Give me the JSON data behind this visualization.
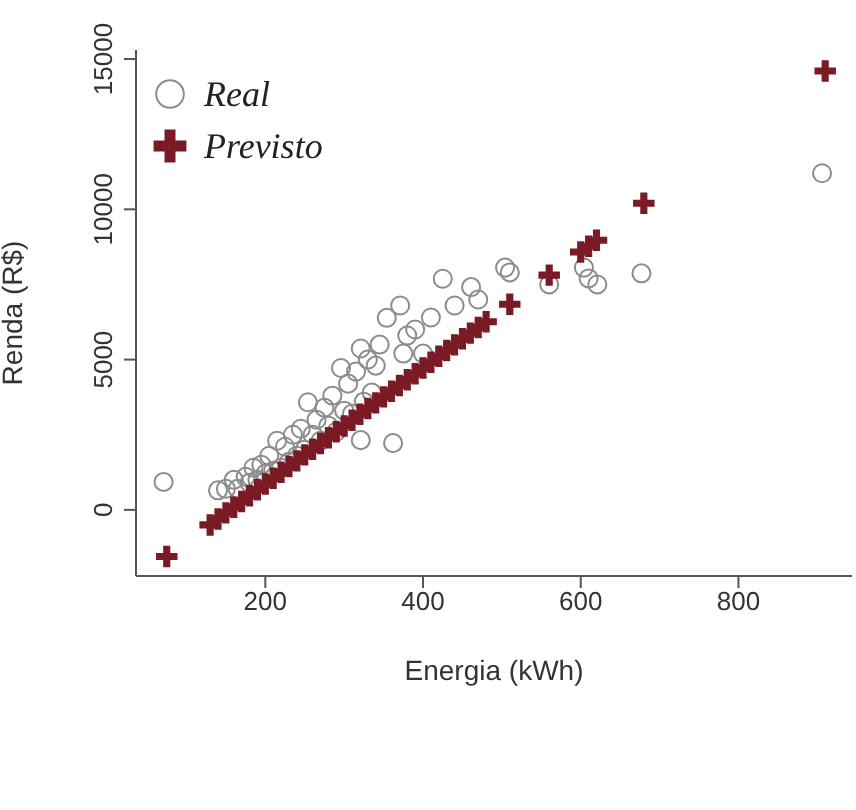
{
  "chart_data": {
    "type": "scatter",
    "xlabel": "Energia (kWh)",
    "ylabel": "Renda (R$)",
    "xlim": [
      36,
      944
    ],
    "xticks": [
      200,
      400,
      600,
      800
    ],
    "ylim": [
      -2200,
      15300
    ],
    "yticks": [
      0,
      5000,
      10000,
      15000
    ],
    "grid": false,
    "legend": "top left",
    "series": [
      {
        "name": "Real",
        "color": "#8c8c8c",
        "marker": "circle",
        "x": [
          71,
          140,
          150,
          160,
          165,
          175,
          180,
          185,
          190,
          195,
          200,
          205,
          210,
          215,
          220,
          225,
          230,
          235,
          240,
          245,
          250,
          254,
          260,
          265,
          270,
          275,
          280,
          285,
          290,
          296,
          300,
          305,
          310,
          315,
          321,
          321,
          325,
          330,
          335,
          340,
          345,
          354,
          362,
          371,
          375,
          380,
          390,
          400,
          410,
          425,
          440,
          461,
          470,
          504,
          510,
          560,
          604,
          610,
          621,
          677,
          906
        ],
        "values": [
          930,
          650,
          700,
          1000,
          700,
          1100,
          900,
          1400,
          1000,
          1500,
          1200,
          1800,
          1300,
          2300,
          1400,
          2100,
          1600,
          2500,
          1800,
          2700,
          2000,
          3580,
          2500,
          3000,
          2300,
          3400,
          2800,
          3800,
          2600,
          4720,
          3300,
          4200,
          3200,
          4600,
          2320,
          5370,
          3600,
          5000,
          3900,
          4800,
          5500,
          6390,
          2220,
          6800,
          5200,
          5800,
          6000,
          5200,
          6400,
          7690,
          6800,
          7410,
          7000,
          8060,
          7900,
          7500,
          8060,
          7700,
          7500,
          7870,
          11200
        ]
      },
      {
        "name": "Previsto",
        "color": "#7a1a24",
        "marker": "cross",
        "x": [
          75,
          130,
          140,
          150,
          160,
          170,
          180,
          190,
          200,
          210,
          220,
          230,
          240,
          250,
          260,
          270,
          280,
          290,
          300,
          310,
          320,
          330,
          340,
          350,
          360,
          370,
          380,
          390,
          400,
          410,
          420,
          430,
          440,
          450,
          460,
          470,
          480,
          510,
          560,
          600,
          610,
          620,
          680,
          910
        ],
        "values": [
          -1550,
          -500,
          -300,
          -100,
          90,
          280,
          470,
          670,
          860,
          1050,
          1250,
          1440,
          1630,
          1830,
          2020,
          2210,
          2400,
          2600,
          2790,
          2980,
          3180,
          3370,
          3560,
          3760,
          3950,
          4140,
          4330,
          4530,
          4720,
          4910,
          5110,
          5300,
          5490,
          5690,
          5880,
          6070,
          6260,
          6840,
          7810,
          8580,
          8770,
          8970,
          10200,
          14600
        ]
      }
    ]
  }
}
